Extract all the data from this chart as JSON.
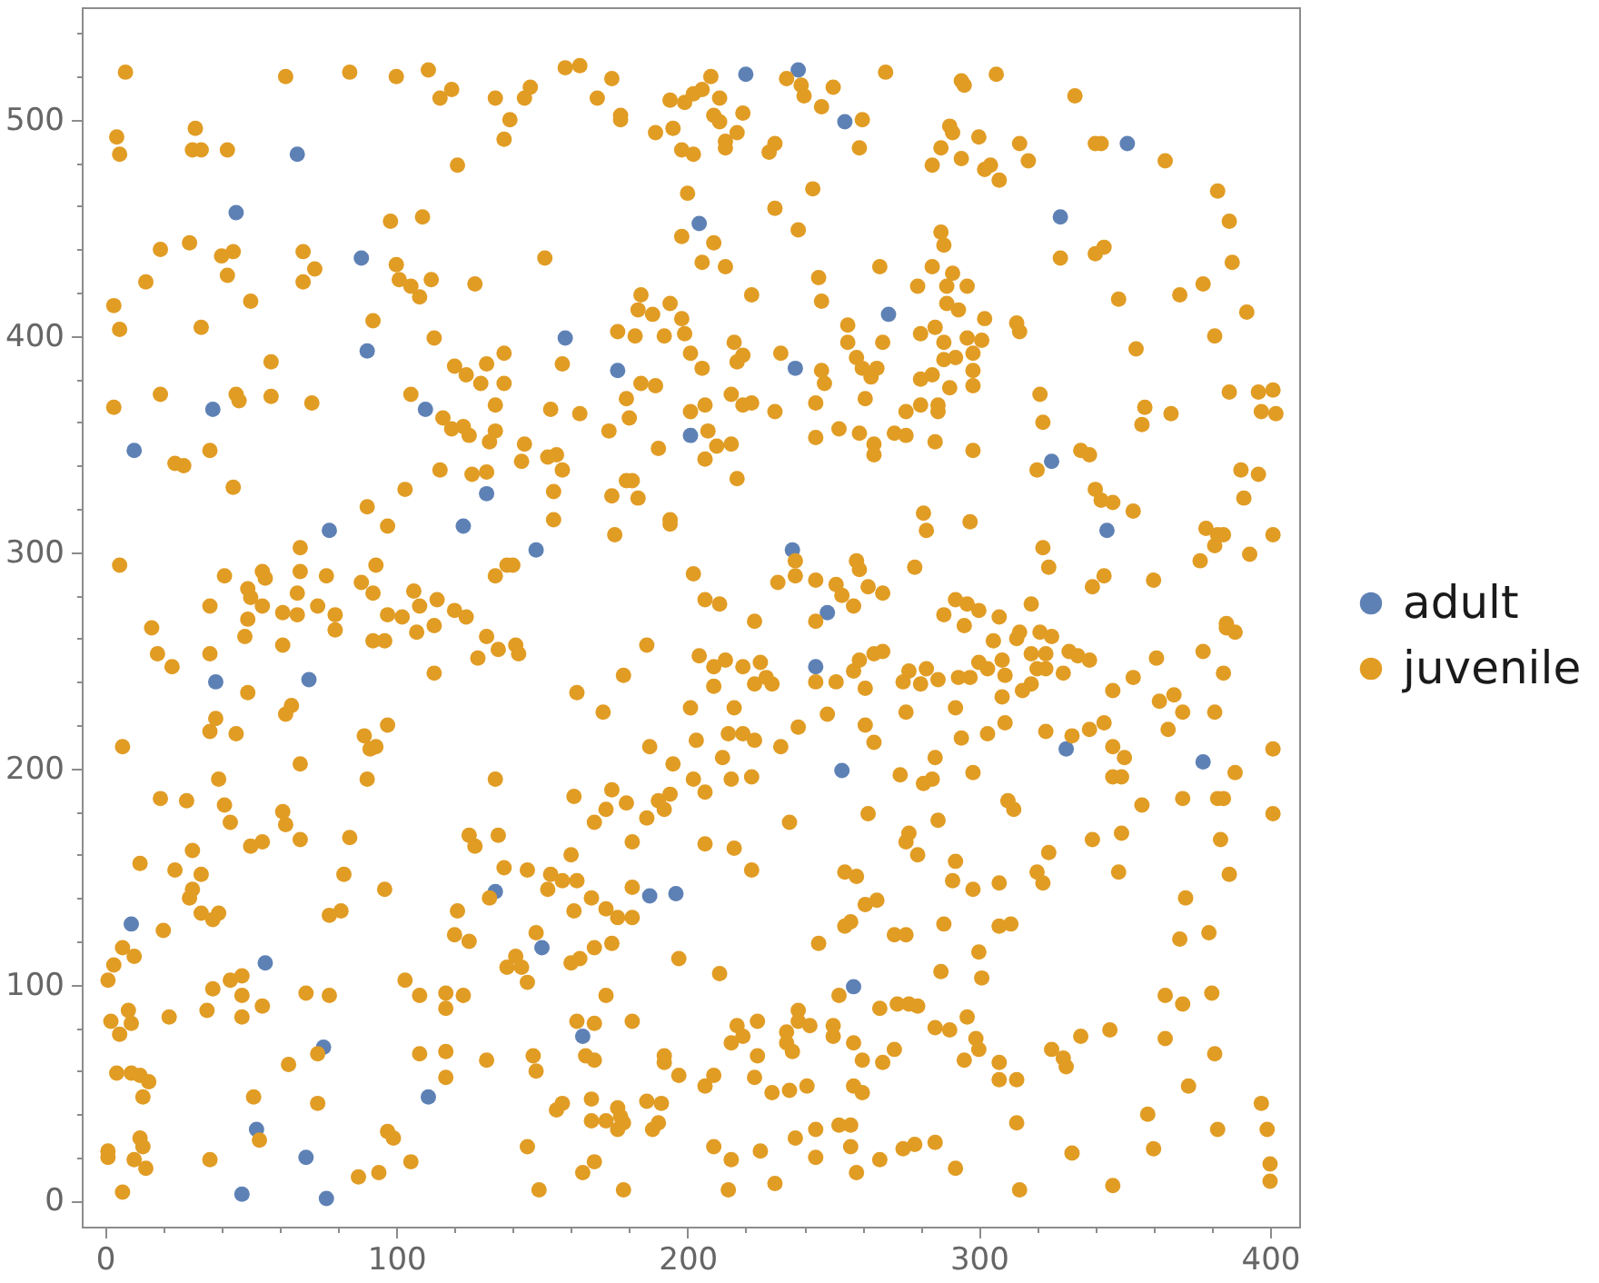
{
  "chart_data": {
    "type": "scatter",
    "series": [
      {
        "name": "adult",
        "color": "#5e81b5",
        "x": [
          66,
          45,
          88,
          90,
          37,
          110,
          10,
          131,
          77,
          123,
          220,
          238,
          254,
          204,
          269,
          158,
          176,
          237,
          201,
          148,
          236,
          248,
          351,
          328,
          325,
          344,
          38,
          70,
          9,
          55,
          75,
          111,
          52,
          69,
          47,
          76,
          244,
          253,
          134,
          187,
          196,
          150,
          257,
          164,
          330,
          377
        ],
        "values": [
          484,
          457,
          436,
          393,
          366,
          366,
          347,
          327,
          310,
          312,
          521,
          523,
          499,
          452,
          410,
          399,
          384,
          385,
          354,
          301,
          301,
          272,
          489,
          455,
          342,
          310,
          240,
          241,
          128,
          110,
          71,
          48,
          33,
          20,
          3,
          1,
          247,
          199,
          143,
          141,
          142,
          117,
          99,
          76,
          209,
          203
        ]
      },
      {
        "name": "juvenile",
        "color": "#e19c24",
        "x": [
          7,
          62,
          84,
          100,
          111,
          115,
          119,
          4,
          5,
          31,
          30,
          33,
          42,
          121,
          19,
          29,
          40,
          44,
          42,
          14,
          3,
          5,
          50,
          33,
          68,
          72,
          68,
          98,
          109,
          100,
          101,
          105,
          108,
          112,
          127,
          92,
          113,
          57,
          19,
          3,
          45,
          46,
          57,
          71,
          105,
          120,
          124,
          129,
          116,
          119,
          123,
          125,
          24,
          27,
          36,
          44,
          103,
          115,
          126,
          90,
          97,
          67,
          67,
          93,
          5,
          41,
          54,
          55,
          49,
          50,
          54,
          36,
          66,
          61,
          66,
          76,
          88,
          92,
          106,
          108,
          114,
          120,
          124,
          73,
          49,
          158,
          163,
          174,
          146,
          144,
          134,
          139,
          137,
          169,
          177,
          177,
          189,
          195,
          194,
          199,
          202,
          205,
          208,
          198,
          202,
          211,
          209,
          211,
          219,
          217,
          213,
          213,
          228,
          230,
          234,
          239,
          240,
          246,
          250,
          260,
          259,
          268,
          200,
          243,
          230,
          238,
          198,
          209,
          205,
          213,
          151,
          266,
          245,
          246,
          222,
          184,
          183,
          188,
          194,
          198,
          199,
          192,
          176,
          182,
          201,
          205,
          216,
          219,
          217,
          232,
          255,
          255,
          258,
          260,
          263,
          265,
          267,
          246,
          247,
          244,
          261,
          137,
          131,
          137,
          134,
          157,
          179,
          180,
          184,
          189,
          153,
          163,
          173,
          201,
          206,
          207,
          210,
          215,
          206,
          215,
          219,
          222,
          230,
          244,
          252,
          259,
          264,
          264,
          190,
          217,
          144,
          143,
          152,
          155,
          157,
          154,
          154,
          134,
          132,
          131,
          179,
          181,
          183,
          174,
          194,
          194,
          175,
          134,
          138,
          140,
          202,
          206,
          211,
          223,
          231,
          237,
          237,
          244,
          251,
          253,
          258,
          259,
          262,
          257,
          267,
          244,
          294,
          295,
          306,
          333,
          290,
          291,
          287,
          284,
          300,
          294,
          302,
          304,
          307,
          314,
          317,
          340,
          342,
          364,
          382,
          386,
          387,
          328,
          340,
          343,
          348,
          369,
          377,
          392,
          381,
          287,
          288,
          284,
          291,
          289,
          289,
          293,
          296,
          302,
          279,
          280,
          285,
          288,
          296,
          301,
          280,
          284,
          288,
          292,
          298,
          290,
          298,
          298,
          313,
          314,
          354,
          275,
          280,
          286,
          286,
          271,
          275,
          285,
          298,
          321,
          322,
          357,
          356,
          366,
          386,
          396,
          401,
          397,
          402,
          335,
          338,
          320,
          390,
          396,
          391,
          340,
          342,
          346,
          353,
          281,
          282,
          297,
          322,
          324,
          278,
          339,
          343,
          360,
          378,
          382,
          384,
          381,
          376,
          393,
          401,
          292,
          296,
          300,
          288,
          307,
          318,
          385,
          16,
          18,
          23,
          36,
          48,
          49,
          61,
          79,
          79,
          92,
          96,
          97,
          102,
          107,
          113,
          128,
          113,
          36,
          38,
          45,
          62,
          64,
          6,
          89,
          91,
          93,
          97,
          67,
          90,
          39,
          19,
          28,
          41,
          43,
          61,
          62,
          50,
          54,
          67,
          84,
          12,
          30,
          24,
          33,
          30,
          29,
          33,
          37,
          39,
          20,
          82,
          96,
          77,
          81,
          121,
          120,
          125,
          125,
          127,
          132,
          6,
          10,
          3,
          1,
          37,
          43,
          47,
          47,
          54,
          47,
          35,
          22,
          8,
          9,
          2,
          5,
          69,
          77,
          103,
          108,
          117,
          123,
          117,
          63,
          73,
          108,
          117,
          117,
          131,
          4,
          9,
          12,
          15,
          13,
          51,
          73,
          97,
          99,
          105,
          53,
          36,
          1,
          1,
          12,
          13,
          10,
          14,
          6,
          87,
          94,
          131,
          135,
          141,
          142,
          186,
          178,
          162,
          171,
          204,
          209,
          213,
          219,
          225,
          227,
          229,
          209,
          223,
          216,
          201,
          244,
          251,
          257,
          261,
          259,
          264,
          267,
          238,
          248,
          261,
          264,
          214,
          219,
          223,
          203,
          232,
          212,
          215,
          222,
          195,
          202,
          206,
          187,
          174,
          172,
          168,
          179,
          190,
          192,
          194,
          186,
          161,
          134,
          235,
          181,
          206,
          216,
          222,
          262,
          135,
          137,
          145,
          153,
          152,
          157,
          162,
          160,
          167,
          161,
          172,
          176,
          181,
          181,
          254,
          258,
          261,
          265,
          256,
          254,
          245,
          148,
          141,
          138,
          143,
          145,
          160,
          163,
          168,
          174,
          197,
          211,
          172,
          162,
          168,
          181,
          252,
          266,
          217,
          219,
          215,
          224,
          224,
          234,
          234,
          236,
          238,
          238,
          242,
          250,
          250,
          257,
          260,
          267,
          147,
          148,
          165,
          168,
          192,
          192,
          197,
          209,
          206,
          223,
          229,
          235,
          241,
          257,
          260,
          157,
          155,
          167,
          167,
          172,
          176,
          177,
          178,
          176,
          186,
          191,
          188,
          190,
          145,
          164,
          168,
          149,
          178,
          209,
          215,
          225,
          230,
          214,
          237,
          244,
          244,
          252,
          256,
          256,
          258,
          266,
          295,
          274,
          280,
          276,
          282,
          286,
          275,
          293,
          297,
          300,
          305,
          303,
          308,
          309,
          314,
          313,
          318,
          321,
          325,
          323,
          323,
          320,
          331,
          334,
          338,
          329,
          318,
          315,
          308,
          309,
          292,
          294,
          303,
          298,
          285,
          273,
          281,
          284,
          323,
          332,
          338,
          343,
          346,
          353,
          361,
          362,
          367,
          370,
          365,
          346,
          350,
          346,
          349,
          377,
          384,
          385,
          388,
          381,
          388,
          401,
          370,
          382,
          384,
          383,
          386,
          401,
          356,
          339,
          349,
          348,
          324,
          320,
          322,
          310,
          312,
          286,
          292,
          291,
          298,
          307,
          276,
          275,
          279,
          271,
          275,
          288,
          307,
          311,
          300,
          301,
          287,
          371,
          369,
          379,
          364,
          370,
          380,
          364,
          381,
          272,
          276,
          279,
          285,
          290,
          296,
          299,
          300,
          295,
          271,
          307,
          307,
          313,
          325,
          329,
          330,
          335,
          345,
          372,
          313,
          358,
          360,
          382,
          397,
          399,
          400,
          400,
          332,
          346,
          314,
          292,
          274,
          278,
          285
        ],
        "values": [
          522,
          520,
          522,
          520,
          523,
          510,
          514,
          492,
          484,
          496,
          486,
          486,
          486,
          479,
          440,
          443,
          437,
          439,
          428,
          425,
          414,
          403,
          416,
          404,
          439,
          431,
          425,
          453,
          455,
          433,
          426,
          423,
          418,
          426,
          424,
          407,
          399,
          388,
          373,
          367,
          373,
          370,
          372,
          369,
          373,
          386,
          382,
          378,
          362,
          357,
          358,
          354,
          341,
          340,
          347,
          330,
          329,
          338,
          336,
          321,
          312,
          302,
          291,
          294,
          294,
          289,
          291,
          288,
          283,
          279,
          275,
          275,
          281,
          272,
          271,
          289,
          286,
          281,
          282,
          275,
          278,
          273,
          270,
          275,
          269,
          524,
          525,
          519,
          515,
          510,
          510,
          500,
          491,
          510,
          502,
          500,
          494,
          496,
          509,
          508,
          512,
          514,
          520,
          486,
          484,
          510,
          502,
          499,
          503,
          494,
          490,
          487,
          485,
          489,
          519,
          516,
          511,
          506,
          515,
          500,
          487,
          522,
          466,
          468,
          459,
          449,
          446,
          443,
          434,
          432,
          436,
          432,
          427,
          416,
          419,
          419,
          412,
          410,
          415,
          408,
          401,
          400,
          402,
          400,
          392,
          385,
          397,
          391,
          388,
          392,
          405,
          397,
          390,
          385,
          381,
          385,
          397,
          384,
          378,
          369,
          371,
          392,
          387,
          378,
          368,
          387,
          371,
          362,
          378,
          377,
          366,
          364,
          356,
          365,
          368,
          356,
          349,
          350,
          343,
          373,
          368,
          369,
          365,
          353,
          357,
          355,
          350,
          345,
          348,
          334,
          350,
          342,
          344,
          345,
          338,
          328,
          315,
          356,
          351,
          337,
          333,
          333,
          325,
          326,
          315,
          313,
          308,
          289,
          294,
          294,
          290,
          278,
          276,
          268,
          286,
          296,
          289,
          287,
          285,
          280,
          296,
          292,
          284,
          275,
          281,
          268,
          518,
          516,
          521,
          511,
          497,
          494,
          487,
          479,
          492,
          482,
          477,
          479,
          472,
          489,
          481,
          489,
          489,
          481,
          467,
          453,
          434,
          436,
          438,
          441,
          417,
          419,
          424,
          411,
          400,
          448,
          442,
          432,
          429,
          423,
          415,
          412,
          423,
          408,
          423,
          401,
          404,
          397,
          399,
          398,
          380,
          382,
          389,
          390,
          392,
          376,
          384,
          377,
          406,
          402,
          394,
          365,
          368,
          368,
          365,
          355,
          354,
          351,
          347,
          373,
          360,
          367,
          359,
          364,
          374,
          374,
          375,
          365,
          364,
          347,
          345,
          338,
          338,
          336,
          325,
          329,
          324,
          323,
          319,
          318,
          310,
          314,
          302,
          293,
          293,
          284,
          289,
          287,
          311,
          308,
          308,
          303,
          296,
          299,
          308,
          278,
          276,
          273,
          271,
          270,
          276,
          267,
          265,
          253,
          247,
          253,
          261,
          235,
          257,
          271,
          264,
          259,
          259,
          271,
          270,
          263,
          266,
          251,
          244,
          217,
          223,
          216,
          225,
          229,
          210,
          215,
          209,
          210,
          220,
          202,
          195,
          195,
          186,
          185,
          183,
          175,
          180,
          174,
          164,
          166,
          167,
          168,
          156,
          162,
          153,
          151,
          144,
          140,
          133,
          130,
          133,
          125,
          151,
          144,
          132,
          134,
          134,
          123,
          120,
          169,
          164,
          140,
          117,
          113,
          109,
          102,
          98,
          102,
          104,
          95,
          90,
          85,
          88,
          85,
          88,
          82,
          83,
          77,
          96,
          95,
          102,
          95,
          96,
          95,
          89,
          63,
          68,
          68,
          69,
          57,
          65,
          59,
          59,
          58,
          55,
          48,
          48,
          45,
          32,
          29,
          18,
          28,
          19,
          23,
          20,
          29,
          25,
          19,
          15,
          4,
          11,
          13,
          261,
          255,
          257,
          253,
          257,
          243,
          235,
          226,
          252,
          247,
          250,
          247,
          249,
          242,
          239,
          238,
          239,
          228,
          228,
          240,
          240,
          245,
          237,
          250,
          253,
          254,
          219,
          225,
          220,
          212,
          216,
          216,
          213,
          213,
          210,
          205,
          195,
          196,
          202,
          195,
          189,
          210,
          190,
          181,
          175,
          184,
          185,
          181,
          188,
          177,
          187,
          195,
          175,
          166,
          165,
          163,
          153,
          179,
          169,
          154,
          153,
          151,
          144,
          148,
          148,
          160,
          140,
          134,
          135,
          131,
          131,
          145,
          152,
          150,
          137,
          139,
          129,
          127,
          119,
          124,
          113,
          108,
          108,
          101,
          110,
          112,
          117,
          119,
          112,
          105,
          95,
          83,
          82,
          83,
          95,
          89,
          81,
          76,
          73,
          83,
          67,
          78,
          73,
          69,
          88,
          83,
          81,
          81,
          76,
          73,
          65,
          64,
          67,
          60,
          67,
          65,
          67,
          64,
          58,
          58,
          53,
          57,
          50,
          51,
          53,
          53,
          50,
          45,
          42,
          47,
          37,
          37,
          43,
          39,
          36,
          33,
          46,
          45,
          33,
          36,
          25,
          13,
          18,
          5,
          5,
          25,
          19,
          23,
          8,
          5,
          29,
          33,
          20,
          35,
          35,
          25,
          13,
          19,
          266,
          240,
          239,
          245,
          246,
          241,
          226,
          242,
          242,
          249,
          259,
          246,
          250,
          243,
          263,
          260,
          253,
          263,
          261,
          253,
          246,
          246,
          254,
          252,
          250,
          244,
          239,
          236,
          233,
          221,
          228,
          214,
          216,
          198,
          205,
          197,
          193,
          195,
          217,
          215,
          218,
          221,
          236,
          242,
          251,
          231,
          234,
          226,
          218,
          210,
          205,
          196,
          196,
          254,
          244,
          265,
          263,
          226,
          198,
          209,
          186,
          186,
          186,
          167,
          151,
          179,
          183,
          167,
          170,
          152,
          161,
          152,
          147,
          185,
          181,
          176,
          157,
          148,
          144,
          147,
          170,
          166,
          160,
          123,
          123,
          128,
          127,
          128,
          115,
          103,
          106,
          140,
          121,
          124,
          95,
          91,
          96,
          75,
          68,
          91,
          91,
          90,
          80,
          79,
          85,
          75,
          70,
          65,
          70,
          64,
          56,
          56,
          70,
          66,
          62,
          76,
          79,
          53,
          36,
          40,
          24,
          33,
          45,
          33,
          17,
          9,
          22,
          7,
          5,
          15,
          24,
          26,
          27
        ]
      }
    ],
    "xlim": [
      -8,
      410
    ],
    "ylim": [
      -12,
      552
    ],
    "xticks": [
      0,
      {
        "value": 20,
        "label": null
      },
      {
        "value": 40,
        "label": null
      },
      {
        "value": 60,
        "label": null
      },
      {
        "value": 80,
        "label": null
      },
      100,
      {
        "value": 120,
        "label": null
      },
      {
        "value": 140,
        "label": null
      },
      {
        "value": 160,
        "label": null
      },
      {
        "value": 180,
        "label": null
      },
      200,
      {
        "value": 220,
        "label": null
      },
      {
        "value": 240,
        "label": null
      },
      {
        "value": 260,
        "label": null
      },
      {
        "value": 280,
        "label": null
      },
      300,
      {
        "value": 320,
        "label": null
      },
      {
        "value": 340,
        "label": null
      },
      {
        "value": 360,
        "label": null
      },
      {
        "value": 380,
        "label": null
      },
      400
    ],
    "yticks": [
      0,
      {
        "value": 20,
        "label": null
      },
      {
        "value": 40,
        "label": null
      },
      {
        "value": 60,
        "label": null
      },
      {
        "value": 80,
        "label": null
      },
      100,
      {
        "value": 120,
        "label": null
      },
      {
        "value": 140,
        "label": null
      },
      {
        "value": 160,
        "label": null
      },
      {
        "value": 180,
        "label": null
      },
      200,
      {
        "value": 220,
        "label": null
      },
      {
        "value": 240,
        "label": null
      },
      {
        "value": 260,
        "label": null
      },
      {
        "value": 280,
        "label": null
      },
      300,
      {
        "value": 320,
        "label": null
      },
      {
        "value": 340,
        "label": null
      },
      {
        "value": 360,
        "label": null
      },
      {
        "value": 380,
        "label": null
      },
      400,
      {
        "value": 420,
        "label": null
      },
      {
        "value": 440,
        "label": null
      },
      {
        "value": 460,
        "label": null
      },
      {
        "value": 480,
        "label": null
      },
      500,
      {
        "value": 520,
        "label": null
      },
      {
        "value": 540,
        "label": null
      }
    ],
    "legend": "right",
    "grid": false,
    "marker": "circle"
  }
}
